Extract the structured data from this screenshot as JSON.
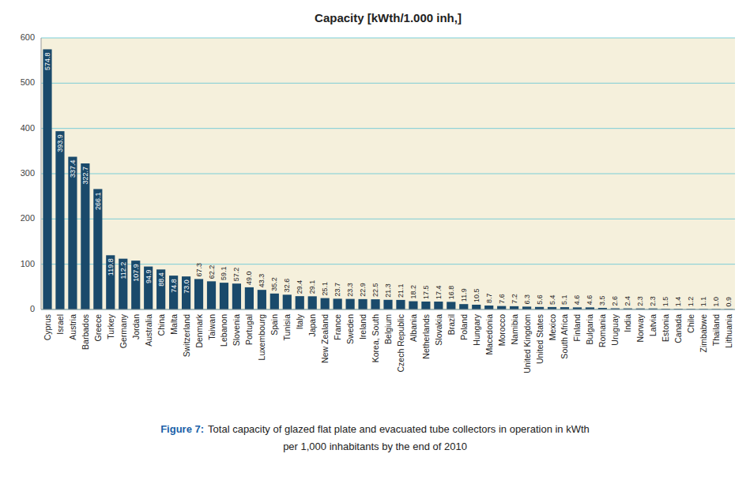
{
  "chart_data": {
    "type": "bar",
    "title": "Capacity [kWth/1.000 inh,]",
    "annotations": [
      "Figure 7:",
      "Total capacity of glazed flat plate and evacuated tube collectors in operation in kWth",
      "per 1,000 inhabitants by the end of 2010"
    ],
    "categories": [
      "Cyprus",
      "Israel",
      "Austria",
      "Barbados",
      "Greece",
      "Turkey",
      "Germany",
      "Jordan",
      "Australia",
      "China",
      "Malta",
      "Switzerland",
      "Denmark",
      "Taiwan",
      "Lebanon",
      "Slovenia",
      "Portugal",
      "Luxembourg",
      "Spain",
      "Tunisia",
      "Italy",
      "Japan",
      "New Zealand",
      "France",
      "Sweden",
      "Ireland",
      "Korea, South",
      "Belgium",
      "Czech Republic",
      "Albania",
      "Netherlands",
      "Slovakia",
      "Brazil",
      "Poland",
      "Hungary",
      "Macedonia",
      "Morocco",
      "Namibia",
      "United Kingdom",
      "United States",
      "Mexico",
      "South Africa",
      "Finland",
      "Bulgaria",
      "Romania",
      "Uruguay",
      "India",
      "Norway",
      "Latvia",
      "Estonia",
      "Canada",
      "Chile",
      "Zimbabwe",
      "Thailand",
      "Lithuania"
    ],
    "values": [
      574.8,
      393.9,
      337.4,
      322.7,
      266.1,
      119.8,
      112.2,
      107.9,
      94.9,
      88.4,
      74.8,
      73.0,
      67.3,
      62.2,
      59.1,
      57.2,
      49.0,
      43.3,
      35.2,
      32.6,
      29.4,
      29.1,
      25.1,
      23.7,
      23.3,
      22.9,
      22.5,
      21.3,
      21.1,
      18.2,
      17.5,
      17.4,
      16.8,
      11.9,
      10.5,
      8.7,
      7.6,
      7.2,
      6.3,
      5.6,
      5.4,
      5.1,
      4.6,
      4.6,
      3.5,
      2.6,
      2.4,
      2.3,
      2.3,
      1.5,
      1.4,
      1.2,
      1.1,
      1.0,
      0.9
    ],
    "color": "#1a4a6b",
    "ylim": [
      0,
      600
    ],
    "yticks": [
      0,
      100,
      200,
      300,
      400,
      500,
      600
    ],
    "grid": true,
    "data_labels": true
  }
}
